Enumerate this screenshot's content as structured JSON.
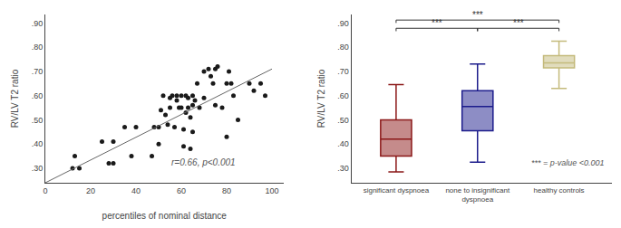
{
  "chart_data": [
    {
      "type": "scatter",
      "xlabel": "percentiles of nominal distance",
      "ylabel": "RV/LV T2 ratio",
      "annotation": "r=0.66, p<0.001",
      "xlim": [
        0,
        105
      ],
      "ylim": [
        0.24,
        0.935
      ],
      "xticks": [
        0,
        20,
        40,
        60,
        80,
        100
      ],
      "yticks": [
        {
          "value": 0.3,
          "label": ".30"
        },
        {
          "value": 0.4,
          "label": ".40"
        },
        {
          "value": 0.5,
          "label": ".50"
        },
        {
          "value": 0.6,
          "label": ".60"
        },
        {
          "value": 0.7,
          "label": ".70"
        },
        {
          "value": 0.8,
          "label": ".80"
        },
        {
          "value": 0.9,
          "label": ".90"
        }
      ],
      "grid": false,
      "series": [
        {
          "type": "scatter",
          "color": "#1a1a1a",
          "x": [
            12,
            13,
            15,
            25,
            28,
            30,
            30,
            35,
            38,
            40,
            47,
            48,
            50,
            50,
            51,
            52,
            53,
            54,
            55,
            55,
            56,
            57,
            58,
            58,
            59,
            60,
            60,
            61,
            61,
            62,
            62,
            63,
            63,
            64,
            64,
            65,
            65,
            65,
            66,
            67,
            68,
            70,
            70,
            72,
            73,
            74,
            75,
            75,
            76,
            78,
            80,
            80,
            81,
            82,
            83,
            85,
            90,
            92,
            95,
            97
          ],
          "values": [
            0.3,
            0.35,
            0.3,
            0.41,
            0.32,
            0.32,
            0.41,
            0.47,
            0.35,
            0.47,
            0.35,
            0.47,
            0.4,
            0.47,
            0.54,
            0.6,
            0.52,
            0.48,
            0.55,
            0.59,
            0.6,
            0.47,
            0.6,
            0.58,
            0.55,
            0.6,
            0.55,
            0.39,
            0.46,
            0.53,
            0.6,
            0.59,
            0.55,
            0.51,
            0.38,
            0.45,
            0.56,
            0.6,
            0.58,
            0.65,
            0.55,
            0.7,
            0.59,
            0.71,
            0.68,
            0.65,
            0.71,
            0.56,
            0.72,
            0.55,
            0.43,
            0.65,
            0.7,
            0.65,
            0.6,
            0.5,
            0.65,
            0.62,
            0.65,
            0.6
          ]
        },
        {
          "type": "line",
          "color": "#666666",
          "x": [
            0,
            100
          ],
          "values": [
            0.24,
            0.71
          ]
        }
      ]
    },
    {
      "type": "box",
      "ylabel": "RV/LV T2 ratio",
      "annotation": "*** = p-value <0.001",
      "categories": [
        "significant dyspnoea",
        "none to insignificant\ndyspnoea",
        "healthy controls"
      ],
      "ylim": [
        0.24,
        0.935
      ],
      "yticks": [
        {
          "value": 0.3,
          "label": ".30"
        },
        {
          "value": 0.4,
          "label": ".40"
        },
        {
          "value": 0.5,
          "label": ".50"
        },
        {
          "value": 0.6,
          "label": ".60"
        },
        {
          "value": 0.7,
          "label": ".70"
        },
        {
          "value": 0.8,
          "label": ".80"
        },
        {
          "value": 0.9,
          "label": ".90"
        }
      ],
      "grid": false,
      "boxes": [
        {
          "whisker_low": 0.285,
          "q1": 0.35,
          "median": 0.42,
          "q3": 0.5,
          "whisker_high": 0.645,
          "color": "#8B1818"
        },
        {
          "whisker_low": 0.325,
          "q1": 0.455,
          "median": 0.555,
          "q3": 0.62,
          "whisker_high": 0.73,
          "color": "#1C1C8C"
        },
        {
          "whisker_low": 0.63,
          "q1": 0.715,
          "median": 0.735,
          "q3": 0.765,
          "whisker_high": 0.825,
          "color": "#C4BA7B"
        }
      ],
      "significance": [
        {
          "between": [
            "significant dyspnoea",
            "healthy controls"
          ],
          "y": 0.912,
          "label": "***"
        },
        {
          "between": [
            "significant dyspnoea",
            "none to insignificant\ndyspnoea"
          ],
          "y": 0.878,
          "label": "***"
        },
        {
          "between": [
            "none to insignificant\ndyspnoea",
            "healthy controls"
          ],
          "y": 0.878,
          "label": "***"
        }
      ]
    }
  ]
}
